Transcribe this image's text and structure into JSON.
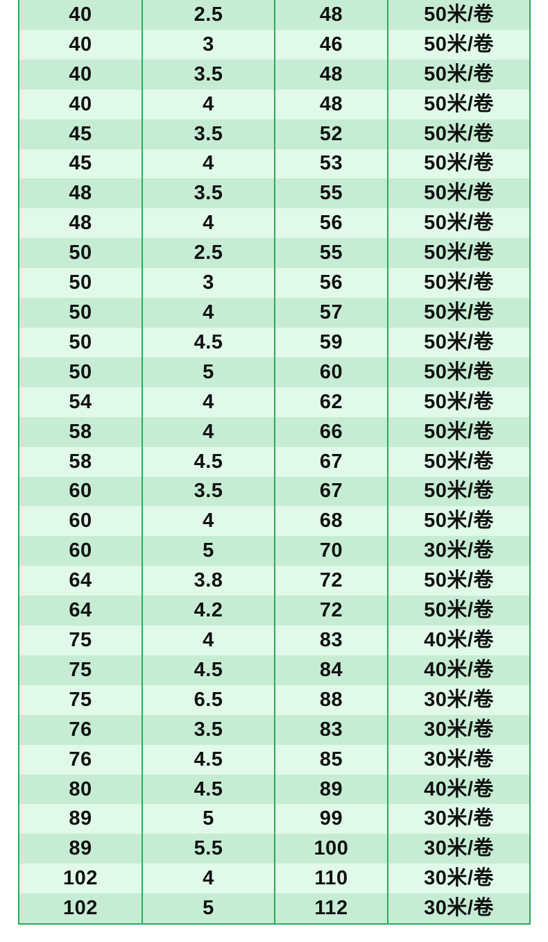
{
  "chart_data": {
    "type": "table",
    "title": "",
    "note": "product size specification table, headers cropped out of view; 4 columns: three numeric size columns and a packing-length column",
    "grid": "vertical-lines-only",
    "rows": [
      [
        "40",
        "2.5",
        "48",
        "50米/卷"
      ],
      [
        "40",
        "3",
        "46",
        "50米/卷"
      ],
      [
        "40",
        "3.5",
        "48",
        "50米/卷"
      ],
      [
        "40",
        "4",
        "48",
        "50米/卷"
      ],
      [
        "45",
        "3.5",
        "52",
        "50米/卷"
      ],
      [
        "45",
        "4",
        "53",
        "50米/卷"
      ],
      [
        "48",
        "3.5",
        "55",
        "50米/卷"
      ],
      [
        "48",
        "4",
        "56",
        "50米/卷"
      ],
      [
        "50",
        "2.5",
        "55",
        "50米/卷"
      ],
      [
        "50",
        "3",
        "56",
        "50米/卷"
      ],
      [
        "50",
        "4",
        "57",
        "50米/卷"
      ],
      [
        "50",
        "4.5",
        "59",
        "50米/卷"
      ],
      [
        "50",
        "5",
        "60",
        "50米/卷"
      ],
      [
        "54",
        "4",
        "62",
        "50米/卷"
      ],
      [
        "58",
        "4",
        "66",
        "50米/卷"
      ],
      [
        "58",
        "4.5",
        "67",
        "50米/卷"
      ],
      [
        "60",
        "3.5",
        "67",
        "50米/卷"
      ],
      [
        "60",
        "4",
        "68",
        "50米/卷"
      ],
      [
        "60",
        "5",
        "70",
        "30米/卷"
      ],
      [
        "64",
        "3.8",
        "72",
        "50米/卷"
      ],
      [
        "64",
        "4.2",
        "72",
        "50米/卷"
      ],
      [
        "75",
        "4",
        "83",
        "40米/卷"
      ],
      [
        "75",
        "4.5",
        "84",
        "40米/卷"
      ],
      [
        "75",
        "6.5",
        "88",
        "30米/卷"
      ],
      [
        "76",
        "3.5",
        "83",
        "30米/卷"
      ],
      [
        "76",
        "4.5",
        "85",
        "30米/卷"
      ],
      [
        "80",
        "4.5",
        "89",
        "40米/卷"
      ],
      [
        "89",
        "5",
        "99",
        "30米/卷"
      ],
      [
        "89",
        "5.5",
        "100",
        "30米/卷"
      ],
      [
        "102",
        "4",
        "110",
        "30米/卷"
      ],
      [
        "102",
        "5",
        "112",
        "30米/卷"
      ]
    ],
    "row_count": 31,
    "row_striping": "odd rows dark green, even rows light green"
  },
  "colors": {
    "row_dark": "#c6edd4",
    "row_light": "#e0f9e9",
    "grid_green": "#2ea85b",
    "text": "#111111",
    "page_bg": "#ffffff"
  }
}
